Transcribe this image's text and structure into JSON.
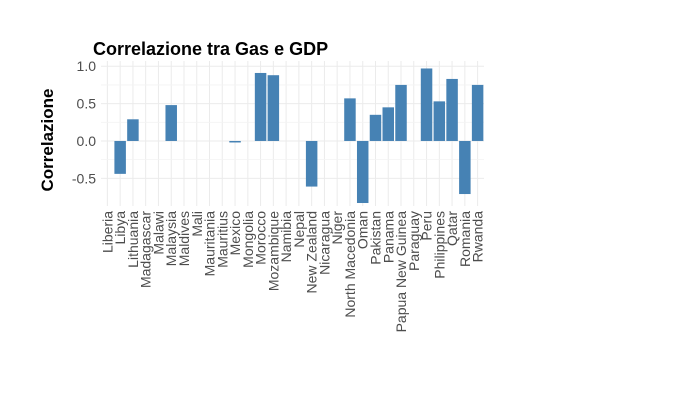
{
  "chart_data": {
    "type": "bar",
    "title": "Correlazione tra Gas e GDP",
    "xlabel": "",
    "ylabel": "Correlazione",
    "categories": [
      "Liberia",
      "Libya",
      "Lithuania",
      "Madagascar",
      "Malawi",
      "Malaysia",
      "Maldives",
      "Mali",
      "Mauritania",
      "Mauritius",
      "Mexico",
      "Mongolia",
      "Morocco",
      "Mozambique",
      "Namibia",
      "Nepal",
      "New Zealand",
      "Nicaragua",
      "Niger",
      "North Macedonia",
      "Oman",
      "Pakistan",
      "Panama",
      "Papua New Guinea",
      "Paraguay",
      "Peru",
      "Philippines",
      "Qatar",
      "Romania",
      "Rwanda"
    ],
    "values": [
      null,
      -0.44,
      0.29,
      null,
      null,
      0.48,
      null,
      null,
      null,
      null,
      -0.02,
      null,
      0.91,
      0.88,
      null,
      null,
      -0.61,
      null,
      null,
      0.57,
      -0.83,
      0.35,
      0.45,
      0.75,
      null,
      0.97,
      0.53,
      0.83,
      -0.71,
      0.75
    ],
    "ylim": [
      -0.87,
      1.07
    ],
    "yticks": [
      -0.5,
      0.0,
      0.5,
      1.0
    ],
    "ytick_labels": [
      "-0.5",
      "0.0",
      "0.5",
      "1.0"
    ],
    "bar_color": "#4682b4",
    "grid": true,
    "legend": "none"
  }
}
